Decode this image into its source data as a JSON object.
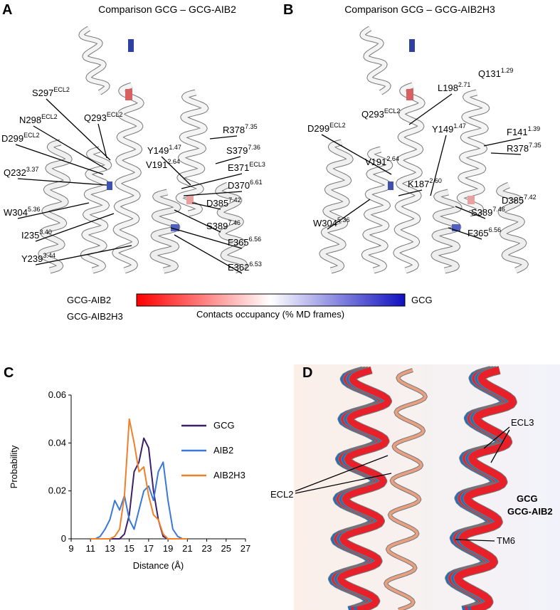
{
  "panel_a": {
    "letter": "A",
    "title": "Comparison GCG – GCG-AIB2",
    "labels": [
      {
        "name": "S297",
        "sup": "ECL2"
      },
      {
        "name": "Q293",
        "sup": "ECL2"
      },
      {
        "name": "N298",
        "sup": "ECL2"
      },
      {
        "name": "D299",
        "sup": "ECL2"
      },
      {
        "name": "V191",
        "sup": "2.64"
      },
      {
        "name": "Q232",
        "sup": "3.37"
      },
      {
        "name": "W304",
        "sup": "5.36"
      },
      {
        "name": "I235",
        "sup": "3.40"
      },
      {
        "name": "Y239",
        "sup": "3.44"
      },
      {
        "name": "R378",
        "sup": "7.35"
      },
      {
        "name": "S379",
        "sup": "7.36"
      },
      {
        "name": "Y149",
        "sup": "1.47"
      },
      {
        "name": "E371",
        "sup": "ECL3"
      },
      {
        "name": "D370",
        "sup": "6.61"
      },
      {
        "name": "D385",
        "sup": "7.42"
      },
      {
        "name": "S389",
        "sup": "7.46"
      },
      {
        "name": "F365",
        "sup": "6.56"
      },
      {
        "name": "E362",
        "sup": "6.53"
      }
    ]
  },
  "panel_b": {
    "letter": "B",
    "title": "Comparison GCG – GCG-AIB2H3",
    "labels": [
      {
        "name": "L198",
        "sup": "2.71"
      },
      {
        "name": "Q131",
        "sup": "1.29"
      },
      {
        "name": "Q293",
        "sup": "ECL2"
      },
      {
        "name": "D299",
        "sup": "ECL2"
      },
      {
        "name": "Y149",
        "sup": "1.47"
      },
      {
        "name": "V191",
        "sup": "2.64"
      },
      {
        "name": "F141",
        "sup": "1.39"
      },
      {
        "name": "R378",
        "sup": "7.35"
      },
      {
        "name": "K187",
        "sup": "2.60"
      },
      {
        "name": "D385",
        "sup": "7.42"
      },
      {
        "name": "W304",
        "sup": "5.36"
      },
      {
        "name": "S389",
        "sup": "7.46"
      },
      {
        "name": "F365",
        "sup": "6.56"
      }
    ]
  },
  "colorbar": {
    "left_labels": [
      "GCG-AIB2",
      "GCG-AIB2H3"
    ],
    "right_label": "GCG",
    "caption": "Contacts occupancy (% MD frames)"
  },
  "chart_data": {
    "type": "line",
    "letter": "C",
    "x_label": "Distance (Å)",
    "y_label": "Probability",
    "x": [
      11,
      11.5,
      12,
      12.5,
      13,
      13.5,
      14,
      14.5,
      15,
      15.5,
      16,
      16.5,
      17,
      17.5,
      18,
      18.5,
      19,
      19.5,
      20,
      20.5,
      21
    ],
    "series": [
      {
        "name": "GCG",
        "color": "#3b1f6b",
        "values": [
          0,
          0,
          0,
          0,
          0,
          0,
          0,
          0.002,
          0.01,
          0.028,
          0.032,
          0.042,
          0.038,
          0.02,
          0.008,
          0.001,
          0,
          0,
          0,
          0,
          0
        ]
      },
      {
        "name": "AIB2",
        "color": "#3a78d8",
        "values": [
          0,
          0,
          0.001,
          0.004,
          0.008,
          0.016,
          0.012,
          0.018,
          0.008,
          0.004,
          0.012,
          0.02,
          0.022,
          0.016,
          0.028,
          0.032,
          0.016,
          0.004,
          0.001,
          0,
          0
        ]
      },
      {
        "name": "AIB2H3",
        "color": "#f07f2a",
        "values": [
          0,
          0,
          0,
          0,
          0,
          0.001,
          0.004,
          0.018,
          0.05,
          0.04,
          0.028,
          0.03,
          0.018,
          0.01,
          0.008,
          0.002,
          0,
          0,
          0,
          0,
          0
        ]
      }
    ],
    "xlim": [
      9,
      27
    ],
    "xticks": [
      9,
      11,
      13,
      15,
      17,
      19,
      21,
      23,
      25,
      27
    ],
    "ylim": [
      0,
      0.06
    ],
    "yticks": [
      0,
      0.02,
      0.04,
      0.06
    ]
  },
  "panel_d": {
    "letter": "D",
    "labels": [
      "ECL3",
      "ECL2",
      "TM6"
    ],
    "legend": [
      {
        "name": "GCG",
        "color": "#1f6fc0"
      },
      {
        "name": "GCG-AIB2",
        "color": "#e8202a"
      }
    ]
  }
}
